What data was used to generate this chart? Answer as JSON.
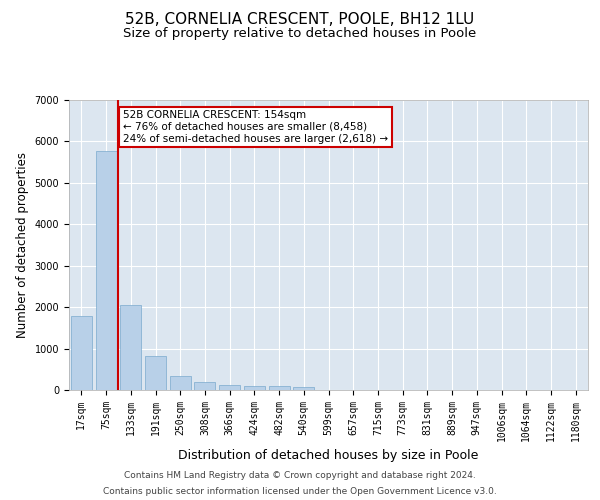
{
  "title1": "52B, CORNELIA CRESCENT, POOLE, BH12 1LU",
  "title2": "Size of property relative to detached houses in Poole",
  "xlabel": "Distribution of detached houses by size in Poole",
  "ylabel": "Number of detached properties",
  "bar_color": "#b8d0e8",
  "bar_edge_color": "#7aaace",
  "categories": [
    "17sqm",
    "75sqm",
    "133sqm",
    "191sqm",
    "250sqm",
    "308sqm",
    "366sqm",
    "424sqm",
    "482sqm",
    "540sqm",
    "599sqm",
    "657sqm",
    "715sqm",
    "773sqm",
    "831sqm",
    "889sqm",
    "947sqm",
    "1006sqm",
    "1064sqm",
    "1122sqm",
    "1180sqm"
  ],
  "values": [
    1780,
    5780,
    2050,
    820,
    340,
    185,
    115,
    100,
    90,
    65,
    0,
    0,
    0,
    0,
    0,
    0,
    0,
    0,
    0,
    0,
    0
  ],
  "ylim": [
    0,
    7000
  ],
  "yticks": [
    0,
    1000,
    2000,
    3000,
    4000,
    5000,
    6000,
    7000
  ],
  "vline_color": "#cc0000",
  "annotation_text": "52B CORNELIA CRESCENT: 154sqm\n← 76% of detached houses are smaller (8,458)\n24% of semi-detached houses are larger (2,618) →",
  "annotation_box_color": "#cc0000",
  "background_color": "#dce6f0",
  "footer1": "Contains HM Land Registry data © Crown copyright and database right 2024.",
  "footer2": "Contains public sector information licensed under the Open Government Licence v3.0.",
  "grid_color": "#ffffff",
  "title1_fontsize": 11,
  "title2_fontsize": 9.5,
  "xlabel_fontsize": 9,
  "ylabel_fontsize": 8.5,
  "tick_fontsize": 7,
  "footer_fontsize": 6.5,
  "annotation_fontsize": 7.5
}
